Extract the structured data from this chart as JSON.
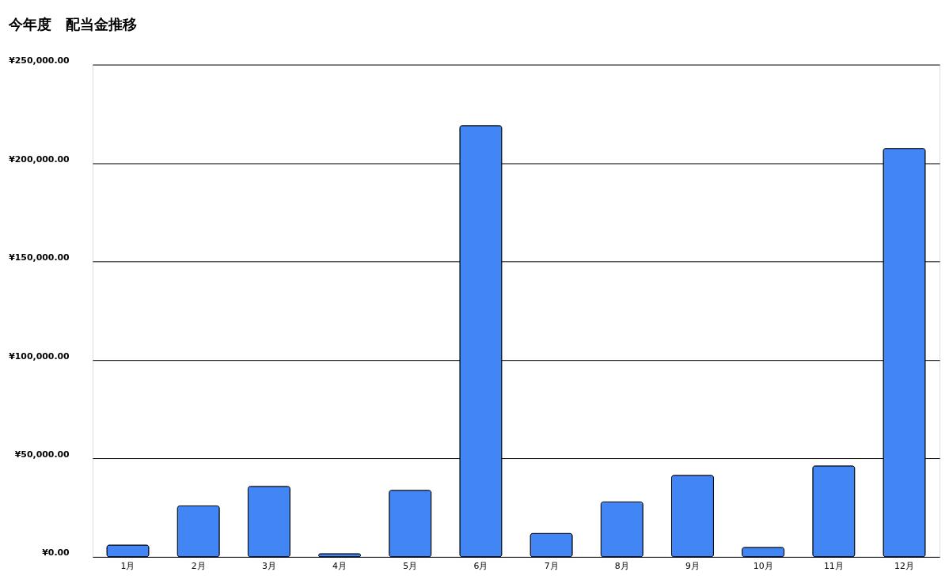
{
  "chart_data": {
    "type": "bar",
    "title": "今年度　配当金推移",
    "categories": [
      "1月",
      "2月",
      "3月",
      "4月",
      "5月",
      "6月",
      "7月",
      "8月",
      "9月",
      "10月",
      "11月",
      "12月"
    ],
    "series": [
      {
        "color": "#4285f4",
        "values": [
          6000,
          25900,
          35800,
          1600,
          33800,
          219000,
          11900,
          27900,
          41400,
          4800,
          46200,
          207400
        ]
      }
    ],
    "ylim": [
      0,
      250000
    ],
    "yticks": [
      {
        "value": 0,
        "label": "¥0.00"
      },
      {
        "value": 50000,
        "label": "¥50,000.00"
      },
      {
        "value": 100000,
        "label": "¥100,000.00"
      },
      {
        "value": 150000,
        "label": "¥150,000.00"
      },
      {
        "value": 200000,
        "label": "¥200,000.00"
      },
      {
        "value": 250000,
        "label": "¥250,000.00"
      }
    ],
    "grid": "y",
    "legend": false
  }
}
